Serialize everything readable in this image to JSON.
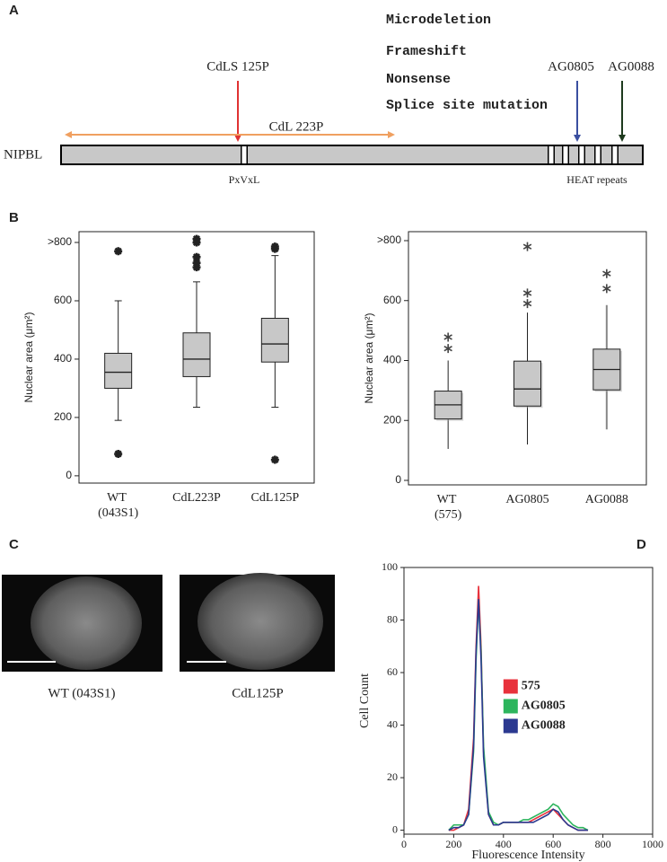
{
  "panel_labels": [
    "A",
    "B",
    "C",
    "D"
  ],
  "diagram": {
    "gene": "NIPBL",
    "legend": [
      {
        "label": "Microdeletion",
        "color": "#f0a060"
      },
      {
        "label": "Frameshift",
        "color": "#e03232"
      },
      {
        "label": "Nonsense",
        "color": "#3a7a3a"
      },
      {
        "label": "Splice site mutation",
        "color": "#3a4fa0"
      }
    ],
    "markers": [
      {
        "label": "CdLS 125P",
        "color": "#e03232"
      },
      {
        "label": "AG0805",
        "color": "#3a4fa0"
      },
      {
        "label": "AG0088",
        "color": "#1e3a1e"
      }
    ],
    "deletion": {
      "label": "CdL 223P",
      "color": "#f0a060"
    },
    "domains": [
      "PxVxL",
      "HEAT repeats"
    ]
  },
  "chart_data": [
    {
      "type": "box",
      "ylabel": "Nuclear area (μm²)",
      "categories": [
        "WT (043S1)",
        "CdL223P",
        "CdL125P"
      ],
      "boxes": [
        {
          "low": 190,
          "q1": 300,
          "median": 355,
          "q3": 420,
          "high": 600,
          "outliers": [
            770,
            75
          ]
        },
        {
          "low": 235,
          "q1": 340,
          "median": 400,
          "q3": 490,
          "high": 665,
          "outliers": [
            715,
            730,
            750,
            800,
            812
          ]
        },
        {
          "low": 235,
          "q1": 390,
          "median": 452,
          "q3": 540,
          "high": 755,
          "outliers": [
            778,
            786,
            55
          ]
        }
      ],
      "color": "#c8c8c8",
      "outlier_style": "heavy",
      "ylim": [
        -25,
        837
      ],
      "yticks": [
        0,
        200,
        400,
        600,
        {
          "value": 800,
          "label": ">800"
        }
      ]
    },
    {
      "type": "box",
      "ylabel": "Nuclear area (μm²)",
      "categories": [
        "WT (575)",
        "AG0805",
        "AG0088"
      ],
      "boxes": [
        {
          "low": 105,
          "q1": 205,
          "median": 252,
          "q3": 298,
          "high": 400,
          "outliers": [
            440,
            478
          ]
        },
        {
          "low": 120,
          "q1": 248,
          "median": 305,
          "q3": 398,
          "high": 560,
          "outliers": [
            590,
            625,
            780
          ]
        },
        {
          "low": 170,
          "q1": 302,
          "median": 370,
          "q3": 438,
          "high": 585,
          "outliers": [
            640,
            690
          ]
        }
      ],
      "color": "#c8c8c8",
      "outlier_style": "light",
      "ylim": [
        -15,
        830
      ],
      "yticks": [
        0,
        200,
        400,
        600,
        {
          "value": 800,
          "label": ">800"
        }
      ]
    },
    {
      "type": "line",
      "xlabel": "Fluorescence Intensity",
      "ylabel": "Cell Count",
      "x": [
        180,
        200,
        220,
        240,
        260,
        280,
        290,
        300,
        310,
        320,
        340,
        360,
        380,
        400,
        420,
        440,
        460,
        480,
        500,
        520,
        540,
        560,
        580,
        600,
        620,
        640,
        660,
        680,
        700,
        720,
        740
      ],
      "series": [
        {
          "name": "575",
          "color": "#e8323c",
          "values": [
            0,
            0,
            1,
            2,
            8,
            35,
            70,
            93,
            70,
            30,
            6,
            2,
            2,
            3,
            3,
            3,
            3,
            3,
            3,
            4,
            5,
            6,
            7,
            8,
            6,
            4,
            2,
            1,
            0,
            0,
            0
          ]
        },
        {
          "name": "AG0805",
          "color": "#2db55d",
          "values": [
            0,
            2,
            2,
            2,
            6,
            30,
            65,
            87,
            68,
            32,
            7,
            3,
            2,
            3,
            3,
            3,
            3,
            4,
            4,
            5,
            6,
            7,
            8,
            10,
            9,
            6,
            4,
            2,
            1,
            1,
            0
          ]
        },
        {
          "name": "AG0088",
          "color": "#2b3990",
          "values": [
            0,
            1,
            1,
            2,
            6,
            32,
            68,
            88,
            65,
            28,
            6,
            2,
            2,
            3,
            3,
            3,
            3,
            3,
            3,
            3,
            4,
            5,
            6,
            8,
            7,
            4,
            2,
            1,
            0,
            0,
            0
          ]
        }
      ],
      "xlim": [
        0,
        1000
      ],
      "ylim": [
        -1.5,
        100
      ],
      "xticks": [
        0,
        200,
        400,
        600,
        800,
        1000
      ],
      "yticks": [
        0,
        20,
        40,
        60,
        80,
        100
      ],
      "legend": "center-right"
    }
  ],
  "images": {
    "captions": [
      "WT (043S1)",
      "CdL125P"
    ]
  }
}
